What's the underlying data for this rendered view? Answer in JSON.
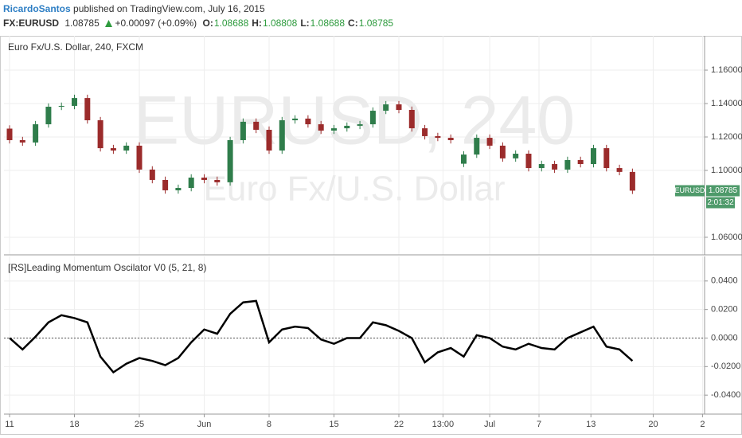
{
  "header": {
    "author": "RicardoSantos",
    "published": "published on TradingView.com, July 16, 2015",
    "symbol": "FX:EURUSD",
    "price": "1.08785",
    "change": "+0.00097 (+0.09%)",
    "ohlc": [
      {
        "key": "O:",
        "value": "1.08688"
      },
      {
        "key": "H:",
        "value": "1.08808"
      },
      {
        "key": "L:",
        "value": "1.08688"
      },
      {
        "key": "C:",
        "value": "1.08785"
      }
    ]
  },
  "chart_data": [
    {
      "type": "candlestick",
      "title": "Euro Fx/U.S. Dollar, 240, FXCM",
      "watermark": "EURUSD, 240",
      "watermark_subtitle": "Euro Fx/U.S. Dollar",
      "up_color": "#2f7d4b",
      "down_color": "#9b2b2b",
      "grid": true,
      "xlim": [
        -0.43,
        53.56
      ],
      "ylim": [
        1.0495,
        1.1805
      ],
      "yticks": [
        {
          "value": 1.06,
          "label": "1.06000"
        },
        {
          "value": 1.1,
          "label": "1.10000"
        },
        {
          "value": 1.12,
          "label": "1.12000"
        },
        {
          "value": 1.14,
          "label": "1.14000"
        },
        {
          "value": 1.16,
          "label": "1.16000"
        }
      ],
      "symbol_label": "EURUSD",
      "last_price": {
        "value": 1.08785,
        "label": "1.08785"
      },
      "countdown": "2:01:32",
      "x": [
        0,
        1,
        2,
        3,
        4,
        5,
        6,
        7,
        8,
        9,
        10,
        11,
        12,
        13,
        14,
        15,
        16,
        17,
        18,
        19,
        20,
        21,
        22,
        23,
        24,
        25,
        26,
        27,
        28,
        29,
        30,
        31,
        32,
        33,
        34,
        35,
        36,
        37,
        38,
        39,
        40,
        41,
        42,
        43,
        44,
        45,
        46,
        47,
        48
      ],
      "open": [
        1.125,
        1.1181,
        1.1167,
        1.1276,
        1.1381,
        1.1386,
        1.1433,
        1.13,
        1.1133,
        1.1119,
        1.1148,
        1.1005,
        1.0943,
        1.0881,
        1.0895,
        1.0957,
        1.0943,
        1.0929,
        1.1181,
        1.1291,
        1.1243,
        1.1119,
        1.13,
        1.131,
        1.1276,
        1.1238,
        1.1252,
        1.1267,
        1.1276,
        1.1357,
        1.1395,
        1.1362,
        1.1252,
        1.1205,
        1.1195,
        1.104,
        1.1095,
        1.1195,
        1.1148,
        1.1072,
        1.11,
        1.1014,
        1.1038,
        1.1005,
        1.1062,
        1.1038,
        1.1133,
        1.1014,
        1.0991
      ],
      "high": [
        1.127,
        1.1201,
        1.1296,
        1.1401,
        1.1406,
        1.1453,
        1.1453,
        1.132,
        1.1153,
        1.1168,
        1.1168,
        1.1025,
        1.0963,
        1.0915,
        1.0977,
        1.0977,
        1.0963,
        1.1201,
        1.1311,
        1.1311,
        1.1263,
        1.132,
        1.133,
        1.133,
        1.1296,
        1.1272,
        1.1287,
        1.1296,
        1.1377,
        1.1415,
        1.1415,
        1.1382,
        1.1272,
        1.1225,
        1.1215,
        1.1115,
        1.1215,
        1.1215,
        1.1168,
        1.112,
        1.112,
        1.1058,
        1.1058,
        1.1082,
        1.1082,
        1.1153,
        1.1153,
        1.1034,
        1.1011
      ],
      "low": [
        1.1161,
        1.1147,
        1.1147,
        1.1256,
        1.1361,
        1.1366,
        1.128,
        1.1113,
        1.1099,
        1.1099,
        1.0985,
        1.0923,
        1.0861,
        1.0861,
        1.0875,
        1.0923,
        1.0909,
        1.0909,
        1.1161,
        1.1223,
        1.1099,
        1.1099,
        1.128,
        1.1256,
        1.1218,
        1.1218,
        1.1232,
        1.1247,
        1.1256,
        1.1337,
        1.1342,
        1.1232,
        1.1185,
        1.1175,
        1.1161,
        1.102,
        1.1075,
        1.1128,
        1.1052,
        1.1052,
        1.0994,
        1.0994,
        1.0985,
        1.0985,
        1.1018,
        1.1018,
        1.0994,
        1.0971,
        1.0859
      ],
      "close": [
        1.1181,
        1.1167,
        1.1276,
        1.1381,
        1.1386,
        1.1433,
        1.13,
        1.1133,
        1.1119,
        1.1148,
        1.1005,
        1.0943,
        1.0881,
        1.0895,
        1.0957,
        1.0943,
        1.0929,
        1.1181,
        1.1291,
        1.1243,
        1.1119,
        1.13,
        1.131,
        1.1276,
        1.1238,
        1.1252,
        1.1267,
        1.1276,
        1.1357,
        1.1395,
        1.1362,
        1.1252,
        1.1205,
        1.1195,
        1.1181,
        1.1095,
        1.1195,
        1.1148,
        1.1072,
        1.11,
        1.1014,
        1.1038,
        1.1005,
        1.1062,
        1.1038,
        1.1133,
        1.1014,
        1.0991,
        1.0879
      ]
    },
    {
      "type": "line",
      "title": "[RS]Leading Momentum Oscilator V0 (5, 21, 8)",
      "color": "#000000",
      "grid": true,
      "hline": 0,
      "xlim": [
        -0.43,
        53.56
      ],
      "ylim": [
        -0.0533,
        0.0572
      ],
      "yticks": [
        {
          "value": -0.04,
          "label": "-0.0400"
        },
        {
          "value": -0.02,
          "label": "-0.0200"
        },
        {
          "value": 0,
          "label": "0.0000"
        },
        {
          "value": 0.02,
          "label": "0.0200"
        },
        {
          "value": 0.04,
          "label": "0.0400"
        }
      ],
      "xticks": [
        {
          "value": 0,
          "label": "11"
        },
        {
          "value": 5,
          "label": "18"
        },
        {
          "value": 10,
          "label": "25"
        },
        {
          "value": 15,
          "label": "Jun"
        },
        {
          "value": 20,
          "label": "8"
        },
        {
          "value": 25,
          "label": "15"
        },
        {
          "value": 30,
          "label": "22"
        },
        {
          "value": 33.4,
          "label": "13:00"
        },
        {
          "value": 37,
          "label": "Jul"
        },
        {
          "value": 40.8,
          "label": "7"
        },
        {
          "value": 44.8,
          "label": "13"
        },
        {
          "value": 49.6,
          "label": "20"
        },
        {
          "value": 53.4,
          "label": "2"
        }
      ],
      "x": [
        0,
        1,
        2,
        3,
        4,
        5,
        6,
        7,
        8,
        9,
        10,
        11,
        12,
        13,
        14,
        15,
        16,
        17,
        18,
        19,
        20,
        21,
        22,
        23,
        24,
        25,
        26,
        27,
        28,
        29,
        30,
        31,
        32,
        33,
        34,
        35,
        36,
        37,
        38,
        39,
        40,
        41,
        42,
        43,
        44,
        45,
        46,
        47,
        48
      ],
      "values": [
        0.0,
        -0.008,
        0.001,
        0.011,
        0.016,
        0.014,
        0.011,
        -0.013,
        -0.024,
        -0.018,
        -0.014,
        -0.016,
        -0.019,
        -0.014,
        -0.003,
        0.006,
        0.003,
        0.017,
        0.025,
        0.026,
        -0.003,
        0.006,
        0.008,
        0.007,
        -0.001,
        -0.004,
        0.0,
        0.0,
        0.011,
        0.009,
        0.005,
        0.0,
        -0.017,
        -0.01,
        -0.007,
        -0.013,
        0.002,
        0.0,
        -0.006,
        -0.008,
        -0.004,
        -0.007,
        -0.008,
        0.0,
        0.004,
        0.008,
        -0.006,
        -0.008,
        -0.016
      ]
    }
  ]
}
